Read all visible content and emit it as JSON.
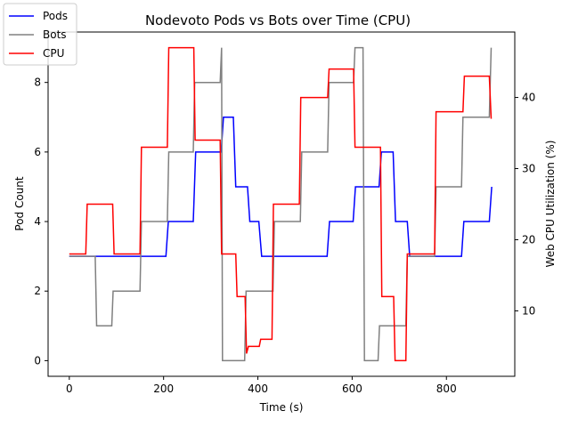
{
  "chart_data": {
    "type": "line",
    "title": "Nodevoto Pods vs Bots over Time (CPU)",
    "xlabel": "Time (s)",
    "ylabel_left": "Pod Count",
    "ylabel_right": "Web CPU Utilization (%)",
    "xlim": [
      -45,
      945
    ],
    "ylim_left": [
      -0.45,
      9.45
    ],
    "ylim_right": [
      0.8,
      49.2
    ],
    "x_ticks": [
      0,
      200,
      400,
      600,
      800
    ],
    "y_ticks_left": [
      0,
      2,
      4,
      6,
      8
    ],
    "y_ticks_right": [
      10,
      20,
      30,
      40
    ],
    "legend_position": "upper-left",
    "colors": {
      "Pods": "#0000ff",
      "Bots": "#808080",
      "CPU": "#ff0000"
    },
    "series": [
      {
        "name": "Pods",
        "axis": "left",
        "step": true,
        "points": [
          [
            0,
            3
          ],
          [
            205,
            3
          ],
          [
            210,
            4
          ],
          [
            263,
            4
          ],
          [
            268,
            6
          ],
          [
            322,
            6
          ],
          [
            327,
            7
          ],
          [
            348,
            7
          ],
          [
            353,
            5
          ],
          [
            378,
            5
          ],
          [
            383,
            4
          ],
          [
            402,
            4
          ],
          [
            408,
            3
          ],
          [
            547,
            3
          ],
          [
            552,
            4
          ],
          [
            602,
            4
          ],
          [
            607,
            5
          ],
          [
            657,
            5
          ],
          [
            662,
            6
          ],
          [
            687,
            6
          ],
          [
            692,
            4
          ],
          [
            717,
            4
          ],
          [
            722,
            3
          ],
          [
            832,
            3
          ],
          [
            837,
            4
          ],
          [
            891,
            4
          ],
          [
            896,
            5
          ]
        ]
      },
      {
        "name": "Bots",
        "axis": "left",
        "step": true,
        "points": [
          [
            0,
            3
          ],
          [
            55,
            3
          ],
          [
            58,
            1
          ],
          [
            90,
            1
          ],
          [
            93,
            2
          ],
          [
            150,
            2
          ],
          [
            153,
            4
          ],
          [
            208,
            4
          ],
          [
            211,
            6
          ],
          [
            263,
            6
          ],
          [
            266,
            8
          ],
          [
            320,
            8
          ],
          [
            323,
            9
          ],
          [
            325,
            0
          ],
          [
            372,
            0
          ],
          [
            375,
            2
          ],
          [
            432,
            2
          ],
          [
            435,
            4
          ],
          [
            490,
            4
          ],
          [
            493,
            6
          ],
          [
            548,
            6
          ],
          [
            551,
            8
          ],
          [
            603,
            8
          ],
          [
            606,
            9
          ],
          [
            623,
            9
          ],
          [
            626,
            0
          ],
          [
            655,
            0
          ],
          [
            658,
            1
          ],
          [
            714,
            1
          ],
          [
            717,
            3
          ],
          [
            775,
            3
          ],
          [
            778,
            5
          ],
          [
            832,
            5
          ],
          [
            835,
            7
          ],
          [
            891,
            7
          ],
          [
            895,
            9
          ]
        ]
      },
      {
        "name": "CPU",
        "axis": "right",
        "step": true,
        "points": [
          [
            0,
            18
          ],
          [
            35,
            18
          ],
          [
            38,
            25
          ],
          [
            92,
            25
          ],
          [
            95,
            18
          ],
          [
            150,
            18
          ],
          [
            153,
            33
          ],
          [
            208,
            33
          ],
          [
            211,
            47
          ],
          [
            264,
            47
          ],
          [
            267,
            34
          ],
          [
            320,
            34
          ],
          [
            323,
            18
          ],
          [
            353,
            18
          ],
          [
            356,
            12
          ],
          [
            373,
            12
          ],
          [
            376,
            4
          ],
          [
            380,
            5
          ],
          [
            403,
            5
          ],
          [
            406,
            6
          ],
          [
            430,
            6
          ],
          [
            433,
            25
          ],
          [
            488,
            25
          ],
          [
            491,
            40
          ],
          [
            548,
            40
          ],
          [
            551,
            44
          ],
          [
            603,
            44
          ],
          [
            606,
            33
          ],
          [
            660,
            33
          ],
          [
            663,
            12
          ],
          [
            688,
            12
          ],
          [
            691,
            3
          ],
          [
            714,
            3
          ],
          [
            717,
            18
          ],
          [
            775,
            18
          ],
          [
            778,
            38
          ],
          [
            835,
            38
          ],
          [
            838,
            43
          ],
          [
            891,
            43
          ],
          [
            895,
            37
          ]
        ]
      }
    ]
  }
}
